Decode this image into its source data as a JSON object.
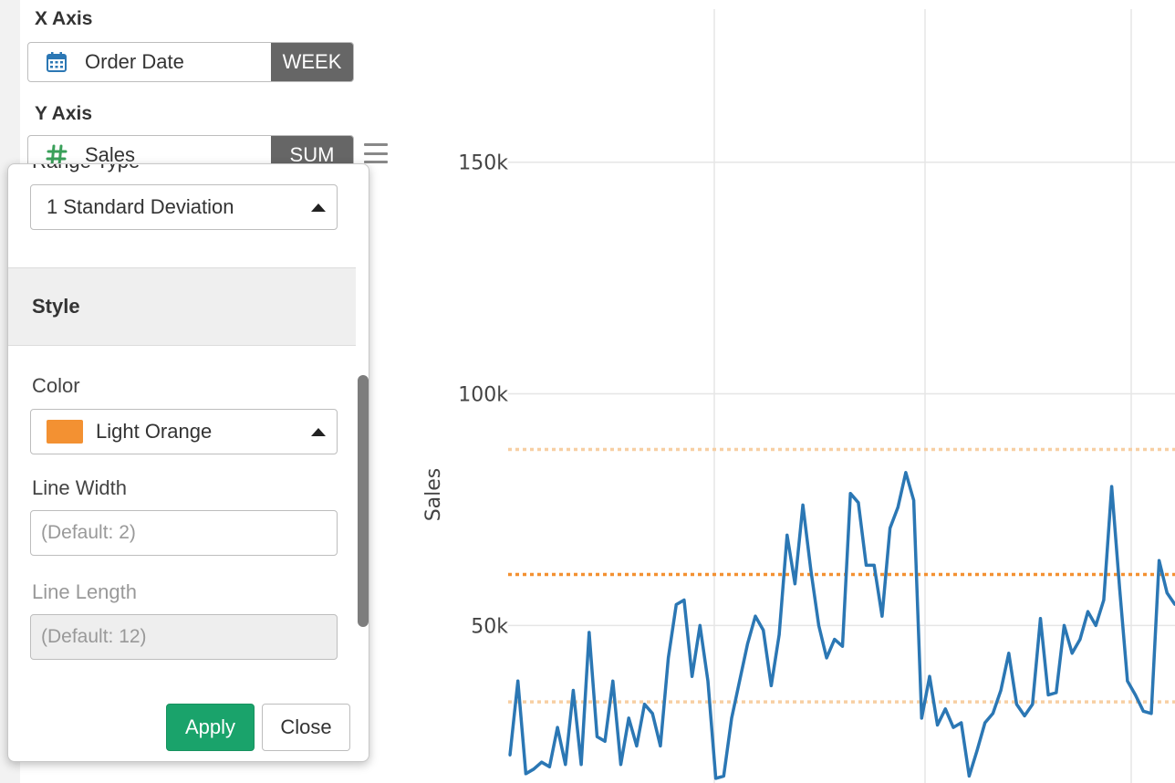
{
  "x_axis": {
    "heading": "X Axis",
    "field": "Order Date",
    "field_icon": "calendar-icon",
    "aggregation": "WEEK"
  },
  "y_axis": {
    "heading": "Y Axis",
    "field": "Sales",
    "field_icon": "hash-icon",
    "aggregation": "SUM",
    "menu_icon": "hamburger-icon"
  },
  "popover": {
    "range_type_label": "Range Type",
    "range_type_value": "1 Standard Deviation",
    "style_section": "Style",
    "color_label": "Color",
    "color_value": "Light Orange",
    "color_hex": "#f39132",
    "line_width_label": "Line Width",
    "line_width_placeholder": "(Default: 2)",
    "line_length_label": "Line Length",
    "line_length_placeholder": "(Default: 12)",
    "apply_label": "Apply",
    "close_label": "Close",
    "apply_color": "#1aa36b"
  },
  "chart_data": {
    "type": "line",
    "ylabel": "Sales",
    "ylim": [
      16000,
      185000
    ],
    "y_ticks": [
      {
        "value": 50000,
        "label": "50k"
      },
      {
        "value": 100000,
        "label": "100k"
      },
      {
        "value": 150000,
        "label": "150k"
      }
    ],
    "grid": true,
    "line_color": "#2b77b4",
    "series": [
      {
        "values": [
          22000,
          38000,
          18000,
          19000,
          20500,
          19500,
          28000,
          20000,
          36000,
          20000,
          48500,
          26000,
          25000,
          38000,
          20000,
          30000,
          24000,
          33000,
          31000,
          24000,
          43000,
          54500,
          55500,
          39000,
          50000,
          38000,
          17000,
          17500,
          30000,
          38000,
          46000,
          52000,
          49000,
          37000,
          48000,
          69500,
          59000,
          76000,
          62000,
          50000,
          43000,
          47000,
          45500,
          78500,
          76500,
          63000,
          63000,
          52000,
          71000,
          75500,
          83000,
          77000,
          30000,
          39000,
          28500,
          32000,
          28000,
          29000,
          17500,
          23000,
          29000,
          31000,
          36000,
          44000,
          33000,
          30500,
          33000,
          51500,
          35000,
          35500,
          50000,
          44000,
          47000,
          53000,
          50000,
          55500,
          80000,
          58000,
          38000,
          35000,
          31500,
          31000,
          64000,
          57000,
          54500
        ]
      }
    ],
    "reference_lines": [
      {
        "kind": "mean",
        "value": 61000,
        "color": "#f39132",
        "style": "dotted"
      },
      {
        "kind": "+1 std",
        "value": 88000,
        "color": "#f7cfa3",
        "style": "dotted"
      },
      {
        "kind": "-1 std",
        "value": 33500,
        "color": "#f7cfa3",
        "style": "dotted"
      }
    ]
  }
}
